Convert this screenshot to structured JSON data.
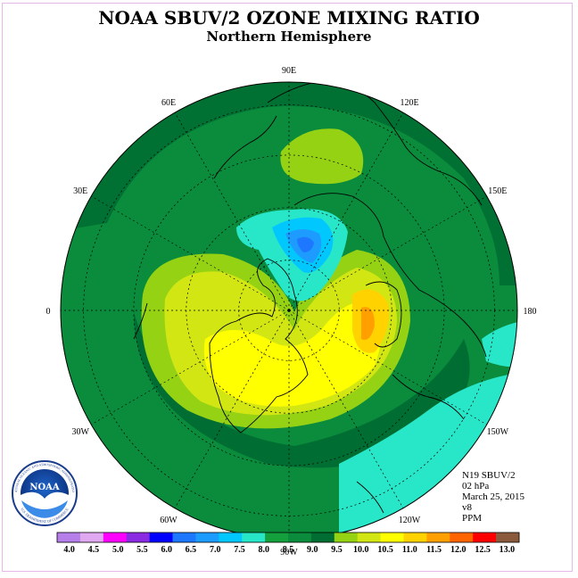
{
  "title": "NOAA SBUV/2 OZONE MIXING RATIO",
  "subtitle": "Northern Hemisphere",
  "longitude_labels": [
    {
      "text": "90E",
      "lon": 90
    },
    {
      "text": "120E",
      "lon": 120
    },
    {
      "text": "60E",
      "lon": 60
    },
    {
      "text": "150E",
      "lon": 150
    },
    {
      "text": "30E",
      "lon": 30
    },
    {
      "text": "180",
      "lon": 180
    },
    {
      "text": "0",
      "lon": 0
    },
    {
      "text": "150W",
      "lon": -150
    },
    {
      "text": "30W",
      "lon": -30
    },
    {
      "text": "120W",
      "lon": -120
    },
    {
      "text": "60W",
      "lon": -60
    },
    {
      "text": "90W",
      "lon": -90
    }
  ],
  "info": {
    "satellite": "N19 SBUV/2",
    "level": "02 hPa",
    "date": "March 25, 2015",
    "version": "v8",
    "units": "PPM"
  },
  "colorbar": {
    "labels": [
      "4.0",
      "4.5",
      "5.0",
      "5.5",
      "6.0",
      "6.5",
      "7.0",
      "7.5",
      "8.0",
      "8.5",
      "9.0",
      "9.5",
      "10.0",
      "10.5",
      "11.0",
      "11.5",
      "12.0",
      "12.5",
      "13.0"
    ],
    "colors": [
      "#b57ee8",
      "#e0a8f0",
      "#ff00ff",
      "#8a2be2",
      "#0000ff",
      "#1e78ff",
      "#1e9bff",
      "#00c8ff",
      "#28e6c8",
      "#14a03c",
      "#0a8c3c",
      "#006e32",
      "#96d214",
      "#d2e614",
      "#ffff00",
      "#ffd200",
      "#ffa000",
      "#ff6400",
      "#ff0000",
      "#8b5a3c"
    ]
  },
  "logo": {
    "text": "NOAA",
    "ring_top": "NATIONAL OCEANIC AND ATMOSPHERIC ADMINISTRATION",
    "ring_bottom": "U.S. DEPARTMENT OF COMMERCE"
  },
  "style": {
    "background_green": "#0a8c3c",
    "dark_green": "#006e32"
  }
}
